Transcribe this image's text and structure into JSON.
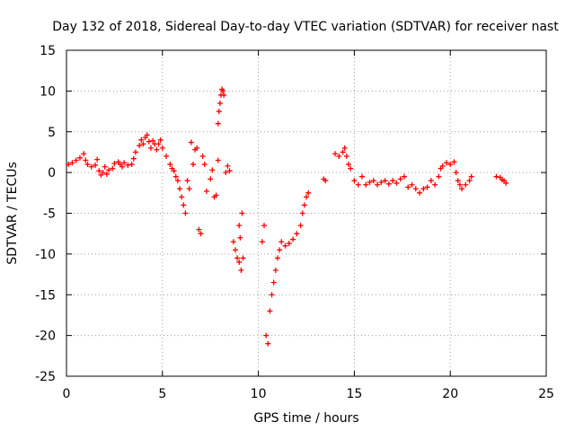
{
  "chart_data": {
    "type": "scatter",
    "title": "Day 132 of 2018, Sidereal Day-to-day VTEC variation (SDTVAR) for receiver nast",
    "xlabel": "GPS time / hours",
    "ylabel": "SDTVAR / TECUs",
    "xlim": [
      0,
      25
    ],
    "ylim": [
      -25,
      15
    ],
    "x_ticks": [
      "0",
      "5",
      "10",
      "15",
      "20",
      "25"
    ],
    "y_ticks": [
      "15",
      "10",
      "5",
      "0",
      "-5",
      "-10",
      "-15",
      "-20",
      "-25"
    ],
    "x_tick_values": [
      0,
      5,
      10,
      15,
      20,
      25
    ],
    "y_tick_values": [
      15,
      10,
      5,
      0,
      -5,
      -10,
      -15,
      -20,
      -25
    ],
    "grid": true,
    "marker": "+",
    "marker_color": "#ff0000",
    "series": [
      {
        "name": "SDTVAR",
        "points": [
          [
            0.1,
            1.0
          ],
          [
            0.3,
            1.2
          ],
          [
            0.5,
            1.5
          ],
          [
            0.7,
            1.8
          ],
          [
            0.9,
            2.3
          ],
          [
            1.0,
            1.5
          ],
          [
            1.1,
            1.0
          ],
          [
            1.3,
            0.7
          ],
          [
            1.5,
            0.9
          ],
          [
            1.6,
            1.6
          ],
          [
            1.7,
            0.2
          ],
          [
            1.8,
            -0.3
          ],
          [
            1.9,
            0.0
          ],
          [
            2.0,
            0.7
          ],
          [
            2.1,
            -0.2
          ],
          [
            2.2,
            0.3
          ],
          [
            2.4,
            0.5
          ],
          [
            2.5,
            1.1
          ],
          [
            2.7,
            1.3
          ],
          [
            2.8,
            1.0
          ],
          [
            2.9,
            0.7
          ],
          [
            3.0,
            1.2
          ],
          [
            3.2,
            0.9
          ],
          [
            3.4,
            1.0
          ],
          [
            3.5,
            1.7
          ],
          [
            3.6,
            2.5
          ],
          [
            3.8,
            3.3
          ],
          [
            3.9,
            4.0
          ],
          [
            4.0,
            3.5
          ],
          [
            4.1,
            4.3
          ],
          [
            4.2,
            4.6
          ],
          [
            4.3,
            3.8
          ],
          [
            4.4,
            3.0
          ],
          [
            4.5,
            3.9
          ],
          [
            4.6,
            3.5
          ],
          [
            4.7,
            2.8
          ],
          [
            4.8,
            3.5
          ],
          [
            4.9,
            4.0
          ],
          [
            5.0,
            3.0
          ],
          [
            5.2,
            2.0
          ],
          [
            5.4,
            1.0
          ],
          [
            5.5,
            0.5
          ],
          [
            5.6,
            0.2
          ],
          [
            5.7,
            -0.5
          ],
          [
            5.8,
            -1.0
          ],
          [
            5.9,
            -2.0
          ],
          [
            6.0,
            -3.0
          ],
          [
            6.1,
            -4.0
          ],
          [
            6.2,
            -5.0
          ],
          [
            6.3,
            -1.0
          ],
          [
            6.4,
            -2.0
          ],
          [
            6.5,
            3.7
          ],
          [
            6.6,
            1.0
          ],
          [
            6.7,
            2.8
          ],
          [
            6.8,
            3.0
          ],
          [
            6.9,
            -7.0
          ],
          [
            7.0,
            -7.5
          ],
          [
            7.1,
            2.0
          ],
          [
            7.2,
            1.0
          ],
          [
            7.3,
            -2.3
          ],
          [
            7.5,
            -0.8
          ],
          [
            7.6,
            0.3
          ],
          [
            7.7,
            -3.0
          ],
          [
            7.8,
            -2.8
          ],
          [
            7.9,
            1.5
          ],
          [
            7.9,
            6.0
          ],
          [
            7.95,
            7.5
          ],
          [
            8.0,
            8.5
          ],
          [
            8.05,
            9.5
          ],
          [
            8.1,
            10.2
          ],
          [
            8.15,
            10.0
          ],
          [
            8.2,
            9.5
          ],
          [
            8.3,
            0.0
          ],
          [
            8.4,
            0.8
          ],
          [
            8.5,
            0.2
          ],
          [
            8.7,
            -8.5
          ],
          [
            8.8,
            -9.5
          ],
          [
            8.9,
            -10.5
          ],
          [
            9.0,
            -11.0
          ],
          [
            9.1,
            -12.0
          ],
          [
            9.2,
            -10.5
          ],
          [
            9.15,
            -5.0
          ],
          [
            9.0,
            -6.5
          ],
          [
            9.05,
            -8.0
          ],
          [
            10.2,
            -8.5
          ],
          [
            10.3,
            -6.5
          ],
          [
            10.4,
            -20.0
          ],
          [
            10.5,
            -21.0
          ],
          [
            10.6,
            -17.0
          ],
          [
            10.7,
            -15.0
          ],
          [
            10.8,
            -13.5
          ],
          [
            10.9,
            -12.0
          ],
          [
            11.0,
            -10.5
          ],
          [
            11.1,
            -9.5
          ],
          [
            11.2,
            -8.5
          ],
          [
            11.4,
            -9.0
          ],
          [
            11.6,
            -8.7
          ],
          [
            11.8,
            -8.2
          ],
          [
            12.0,
            -7.5
          ],
          [
            12.2,
            -6.5
          ],
          [
            12.3,
            -5.0
          ],
          [
            12.4,
            -4.0
          ],
          [
            12.5,
            -3.0
          ],
          [
            12.6,
            -2.5
          ],
          [
            13.4,
            -0.8
          ],
          [
            13.5,
            -1.0
          ],
          [
            14.0,
            2.3
          ],
          [
            14.2,
            2.0
          ],
          [
            14.4,
            2.5
          ],
          [
            14.5,
            3.0
          ],
          [
            14.6,
            2.0
          ],
          [
            14.7,
            1.0
          ],
          [
            14.8,
            0.5
          ],
          [
            15.0,
            -1.0
          ],
          [
            15.2,
            -1.5
          ],
          [
            15.4,
            -0.5
          ],
          [
            15.6,
            -1.5
          ],
          [
            15.8,
            -1.2
          ],
          [
            16.0,
            -1.0
          ],
          [
            16.2,
            -1.5
          ],
          [
            16.4,
            -1.2
          ],
          [
            16.6,
            -1.0
          ],
          [
            16.8,
            -1.4
          ],
          [
            17.0,
            -1.0
          ],
          [
            17.2,
            -1.3
          ],
          [
            17.4,
            -0.8
          ],
          [
            17.6,
            -0.5
          ],
          [
            17.8,
            -1.8
          ],
          [
            18.0,
            -1.5
          ],
          [
            18.2,
            -2.0
          ],
          [
            18.4,
            -2.5
          ],
          [
            18.6,
            -2.0
          ],
          [
            18.8,
            -1.8
          ],
          [
            19.0,
            -1.0
          ],
          [
            19.2,
            -1.5
          ],
          [
            19.4,
            -0.5
          ],
          [
            19.5,
            0.5
          ],
          [
            19.6,
            0.8
          ],
          [
            19.8,
            1.2
          ],
          [
            20.0,
            1.0
          ],
          [
            20.2,
            1.3
          ],
          [
            20.3,
            0.0
          ],
          [
            20.4,
            -1.0
          ],
          [
            20.5,
            -1.5
          ],
          [
            20.6,
            -2.0
          ],
          [
            20.8,
            -1.5
          ],
          [
            21.0,
            -1.0
          ],
          [
            21.1,
            -0.5
          ],
          [
            22.4,
            -0.5
          ],
          [
            22.6,
            -0.6
          ],
          [
            22.7,
            -0.9
          ],
          [
            22.8,
            -1.0
          ],
          [
            22.9,
            -1.3
          ]
        ]
      }
    ]
  }
}
